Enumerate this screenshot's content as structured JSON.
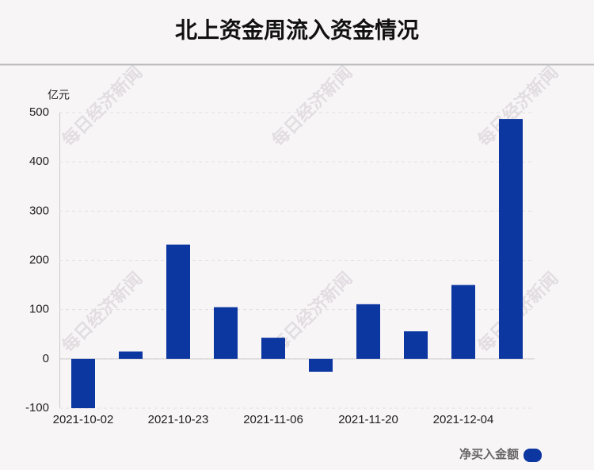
{
  "chart_data": {
    "type": "bar",
    "title": "北上资金周流入资金情况",
    "y_label": "亿元",
    "watermark": "每日经济新闻",
    "categories": [
      "2021-10-02",
      null,
      "2021-10-23",
      null,
      "2021-11-06",
      null,
      "2021-11-20",
      null,
      "2021-12-04",
      null
    ],
    "series": [
      {
        "name": "净买入金额",
        "color": "#0c36a0",
        "values": [
          -100,
          15,
          232,
          105,
          43,
          -26,
          111,
          56,
          150,
          487
        ]
      }
    ],
    "ylim": [
      -100,
      500
    ],
    "yticks": [
      -100,
      0,
      100,
      200,
      300,
      400,
      500
    ],
    "grid": true
  }
}
